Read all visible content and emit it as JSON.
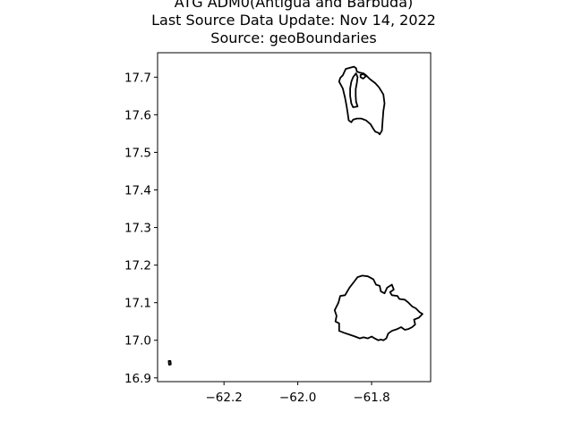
{
  "title": {
    "line1": "ATG ADM0(Antigua and Barbuda)",
    "line2": "Last Source Data Update: Nov 14, 2022",
    "line3": "Source: geoBoundaries"
  },
  "chart_data": {
    "type": "map",
    "xlim": [
      -62.38,
      -61.64
    ],
    "ylim": [
      16.89,
      17.765
    ],
    "x_ticks": [
      -62.2,
      -62.0,
      -61.8
    ],
    "x_tick_labels": [
      "−62.2",
      "−62.0",
      "−61.8"
    ],
    "y_ticks": [
      16.9,
      17.0,
      17.1,
      17.2,
      17.3,
      17.4,
      17.5,
      17.6,
      17.7
    ],
    "y_tick_labels": [
      "16.9",
      "17.0",
      "17.1",
      "17.2",
      "17.3",
      "17.4",
      "17.5",
      "17.6",
      "17.7"
    ],
    "grid": false,
    "stroke_color": "#000000",
    "features": [
      {
        "feature": "barbuda",
        "coords": [
          [
            -61.878,
            17.705
          ],
          [
            -61.87,
            17.722
          ],
          [
            -61.858,
            17.725
          ],
          [
            -61.848,
            17.728
          ],
          [
            -61.842,
            17.724
          ],
          [
            -61.84,
            17.715
          ],
          [
            -61.832,
            17.712
          ],
          [
            -61.822,
            17.71
          ],
          [
            -61.815,
            17.705
          ],
          [
            -61.805,
            17.695
          ],
          [
            -61.79,
            17.684
          ],
          [
            -61.78,
            17.673
          ],
          [
            -61.768,
            17.654
          ],
          [
            -61.765,
            17.63
          ],
          [
            -61.768,
            17.61
          ],
          [
            -61.77,
            17.585
          ],
          [
            -61.772,
            17.558
          ],
          [
            -61.778,
            17.548
          ],
          [
            -61.782,
            17.552
          ],
          [
            -61.79,
            17.555
          ],
          [
            -61.795,
            17.562
          ],
          [
            -61.803,
            17.575
          ],
          [
            -61.815,
            17.585
          ],
          [
            -61.828,
            17.59
          ],
          [
            -61.84,
            17.59
          ],
          [
            -61.85,
            17.587
          ],
          [
            -61.855,
            17.58
          ],
          [
            -61.862,
            17.585
          ],
          [
            -61.865,
            17.605
          ],
          [
            -61.868,
            17.625
          ],
          [
            -61.872,
            17.645
          ],
          [
            -61.878,
            17.67
          ],
          [
            -61.888,
            17.688
          ],
          [
            -61.885,
            17.698
          ],
          [
            -61.878,
            17.705
          ]
        ]
      },
      {
        "feature": "codrington-lagoon",
        "coords": [
          [
            -61.85,
            17.7
          ],
          [
            -61.842,
            17.71
          ],
          [
            -61.838,
            17.7
          ],
          [
            -61.84,
            17.685
          ],
          [
            -61.843,
            17.668
          ],
          [
            -61.843,
            17.65
          ],
          [
            -61.842,
            17.635
          ],
          [
            -61.838,
            17.622
          ],
          [
            -61.85,
            17.62
          ],
          [
            -61.855,
            17.63
          ],
          [
            -61.858,
            17.65
          ],
          [
            -61.858,
            17.67
          ],
          [
            -61.855,
            17.688
          ],
          [
            -61.85,
            17.7
          ]
        ]
      },
      {
        "feature": "barbuda-north-lobe",
        "coords": [
          [
            -61.83,
            17.706
          ],
          [
            -61.822,
            17.708
          ],
          [
            -61.815,
            17.703
          ],
          [
            -61.823,
            17.696
          ],
          [
            -61.83,
            17.7
          ],
          [
            -61.83,
            17.706
          ]
        ]
      },
      {
        "feature": "antigua",
        "coords": [
          [
            -61.9,
            17.08
          ],
          [
            -61.89,
            17.1
          ],
          [
            -61.885,
            17.118
          ],
          [
            -61.872,
            17.12
          ],
          [
            -61.86,
            17.14
          ],
          [
            -61.848,
            17.155
          ],
          [
            -61.838,
            17.168
          ],
          [
            -61.825,
            17.172
          ],
          [
            -61.81,
            17.17
          ],
          [
            -61.795,
            17.162
          ],
          [
            -61.788,
            17.148
          ],
          [
            -61.778,
            17.145
          ],
          [
            -61.775,
            17.13
          ],
          [
            -61.765,
            17.125
          ],
          [
            -61.758,
            17.14
          ],
          [
            -61.745,
            17.148
          ],
          [
            -61.74,
            17.135
          ],
          [
            -61.75,
            17.128
          ],
          [
            -61.745,
            17.12
          ],
          [
            -61.73,
            17.118
          ],
          [
            -61.725,
            17.11
          ],
          [
            -61.71,
            17.108
          ],
          [
            -61.7,
            17.1
          ],
          [
            -61.69,
            17.09
          ],
          [
            -61.68,
            17.085
          ],
          [
            -61.67,
            17.075
          ],
          [
            -61.662,
            17.07
          ],
          [
            -61.672,
            17.06
          ],
          [
            -61.685,
            17.055
          ],
          [
            -61.682,
            17.042
          ],
          [
            -61.69,
            17.035
          ],
          [
            -61.7,
            17.03
          ],
          [
            -61.71,
            17.028
          ],
          [
            -61.72,
            17.035
          ],
          [
            -61.73,
            17.03
          ],
          [
            -61.745,
            17.025
          ],
          [
            -61.755,
            17.018
          ],
          [
            -61.76,
            17.005
          ],
          [
            -61.768,
            17.0
          ],
          [
            -61.775,
            17.002
          ],
          [
            -61.782,
            17.0
          ],
          [
            -61.792,
            17.005
          ],
          [
            -61.8,
            17.01
          ],
          [
            -61.81,
            17.005
          ],
          [
            -61.822,
            17.008
          ],
          [
            -61.832,
            17.005
          ],
          [
            -61.845,
            17.01
          ],
          [
            -61.86,
            17.015
          ],
          [
            -61.875,
            17.02
          ],
          [
            -61.888,
            17.025
          ],
          [
            -61.888,
            17.045
          ],
          [
            -61.898,
            17.05
          ],
          [
            -61.895,
            17.065
          ],
          [
            -61.9,
            17.08
          ]
        ]
      },
      {
        "feature": "redonda",
        "coords": [
          [
            -62.35,
            16.945
          ],
          [
            -62.345,
            16.945
          ],
          [
            -62.344,
            16.936
          ],
          [
            -62.349,
            16.935
          ],
          [
            -62.35,
            16.945
          ]
        ]
      }
    ]
  }
}
